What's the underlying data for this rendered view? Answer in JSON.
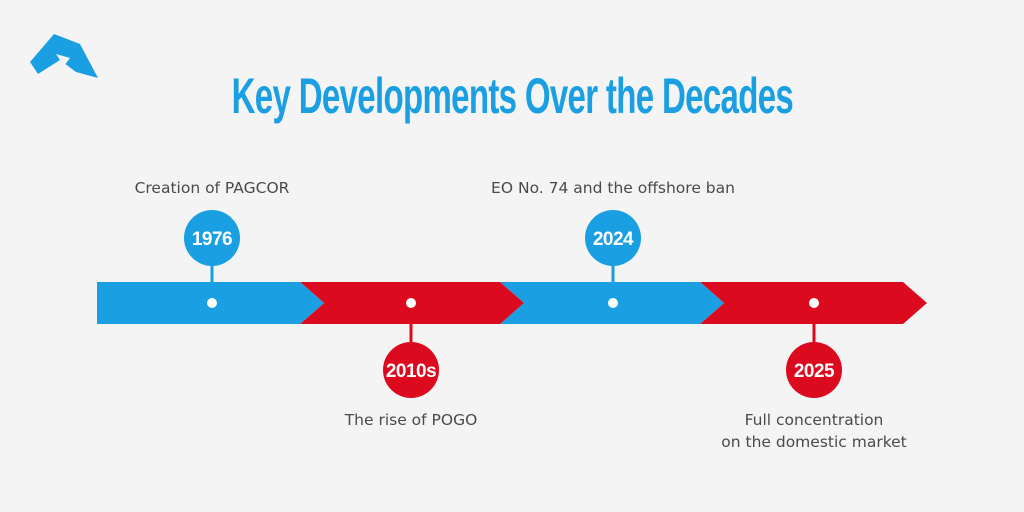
{
  "colors": {
    "blue": "#1aa0e2",
    "red": "#dc0a1e",
    "background": "#f4f4f4",
    "caption_text": "#4a4a4a"
  },
  "logo": {
    "icon": "triangle-a-logo-icon"
  },
  "title": "Key Developments Over the Decades",
  "milestones": [
    {
      "year": "1976",
      "caption_lines": [
        "Creation of PAGCOR"
      ],
      "color": "blue",
      "side": "above"
    },
    {
      "year": "2010s",
      "caption_lines": [
        "The rise of POGO"
      ],
      "color": "red",
      "side": "below"
    },
    {
      "year": "2024",
      "caption_lines": [
        "EO No. 74 and the offshore ban"
      ],
      "color": "blue",
      "side": "above"
    },
    {
      "year": "2025",
      "caption_lines": [
        "Full concentration",
        "on the domestic market"
      ],
      "color": "red",
      "side": "below"
    }
  ]
}
